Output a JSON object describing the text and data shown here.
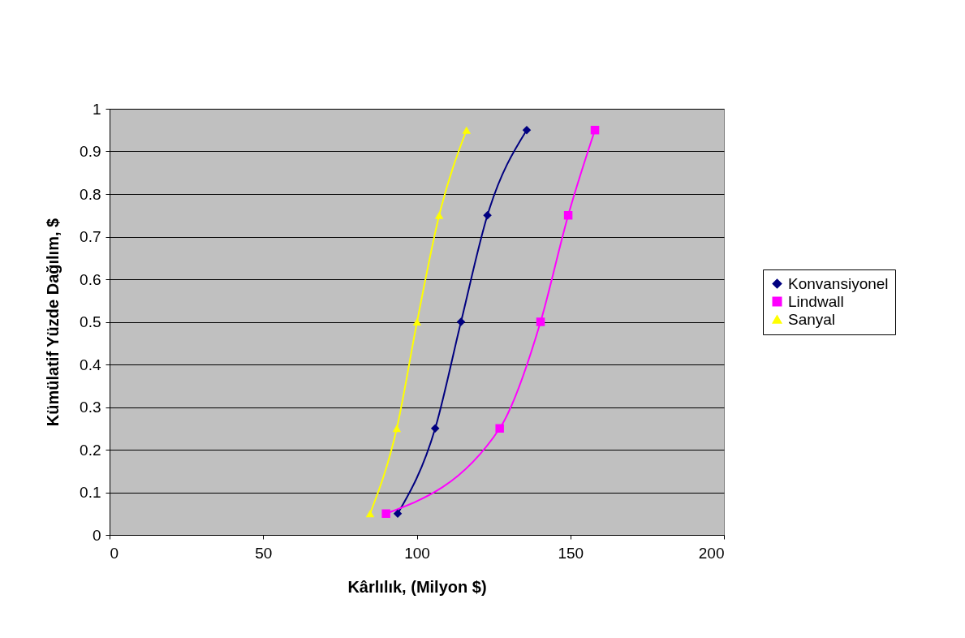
{
  "chart_data": {
    "type": "line",
    "xlabel": "Kârlılık, (Milyon $)",
    "ylabel": "Kümülatif Yüzde Dağılım, $",
    "xlim": [
      0,
      200
    ],
    "xticks": [
      0,
      50,
      100,
      150,
      200
    ],
    "ylim": [
      0,
      1
    ],
    "yticks": [
      0,
      0.1,
      0.2,
      0.3,
      0.4,
      0.5,
      0.6,
      0.7,
      0.8,
      0.9,
      1
    ],
    "grid": "y",
    "legend": "right",
    "series": [
      {
        "name": "Konvansiyonel",
        "color": "#000080",
        "marker": "diamond",
        "x": [
          93.8,
          106,
          114.4,
          123,
          135.8
        ],
        "values": [
          0.05,
          0.25,
          0.5,
          0.75,
          0.95
        ]
      },
      {
        "name": "Lindwall",
        "color": "#ff00ff",
        "marker": "square",
        "x": [
          90,
          127,
          140.3,
          149.3,
          158
        ],
        "values": [
          0.05,
          0.25,
          0.5,
          0.75,
          0.95
        ]
      },
      {
        "name": "Sanyal",
        "color": "#ffff00",
        "marker": "triangle",
        "x": [
          84.8,
          93.5,
          100.1,
          107.3,
          116.2
        ],
        "values": [
          0.05,
          0.25,
          0.5,
          0.75,
          0.95
        ]
      }
    ]
  }
}
